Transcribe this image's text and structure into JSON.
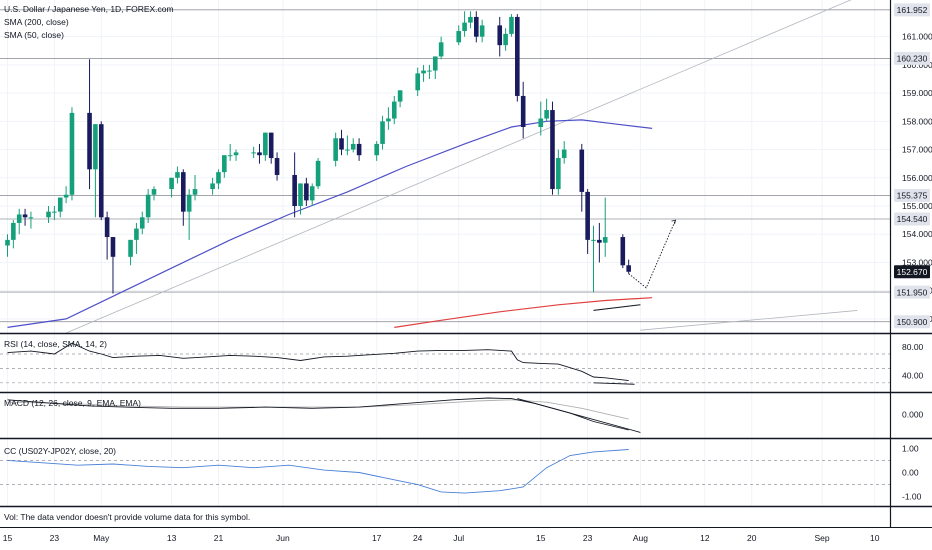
{
  "chart_data": {
    "type": "candlestick",
    "symbol_title": "U.S. Dollar / Japanese Yen, 1D, FOREX.com",
    "overlays": [
      {
        "name": "SMA (200, close)",
        "color": "#e04040"
      },
      {
        "name": "SMA (50, close)",
        "color": "#5050c8"
      }
    ],
    "colors": {
      "up": "#14a07a",
      "down": "#1a1a5e",
      "sma50": "#5050c8",
      "sma200": "#e04040",
      "rsi": "#131722",
      "macd": "#131722",
      "signal": "#b0b0b0",
      "cc": "#4a80d8"
    },
    "price_axis": {
      "range": [
        150.5,
        162.3
      ],
      "ticks": [
        "161.000",
        "160.000",
        "159.000",
        "158.000",
        "157.000",
        "156.000",
        "155.000",
        "154.000",
        "153.000",
        "152.000",
        "151.000"
      ],
      "labels": [
        {
          "text": "161.952",
          "value": 161.952
        },
        {
          "text": "160.230",
          "value": 160.23
        },
        {
          "text": "155.375",
          "value": 155.375
        },
        {
          "text": "154.540",
          "value": 154.54
        },
        {
          "text": "152.670",
          "value": 152.67
        },
        {
          "text": "151.950",
          "value": 151.95
        },
        {
          "text": "150.900",
          "value": 150.9
        }
      ],
      "horizontal_levels": [
        161.952,
        160.23,
        155.375,
        154.54,
        151.95,
        150.9
      ]
    },
    "x_axis": {
      "ticks": [
        {
          "label": "15",
          "day": 0
        },
        {
          "label": "23",
          "day": 8
        },
        {
          "label": "May",
          "day": 16
        },
        {
          "label": "13",
          "day": 28
        },
        {
          "label": "21",
          "day": 36
        },
        {
          "label": "Jun",
          "day": 47
        },
        {
          "label": "17",
          "day": 63
        },
        {
          "label": "24",
          "day": 70
        },
        {
          "label": "Jul",
          "day": 77
        },
        {
          "label": "15",
          "day": 91
        },
        {
          "label": "23",
          "day": 99
        },
        {
          "label": "Aug",
          "day": 108
        },
        {
          "label": "12",
          "day": 119
        },
        {
          "label": "20",
          "day": 127
        },
        {
          "label": "Sep",
          "day": 139
        },
        {
          "label": "10",
          "day": 148
        }
      ]
    },
    "candles": [
      {
        "d": 0,
        "o": 153.6,
        "h": 154.0,
        "l": 153.2,
        "c": 153.8
      },
      {
        "d": 1,
        "o": 153.8,
        "h": 154.5,
        "l": 153.5,
        "c": 154.4
      },
      {
        "d": 2,
        "o": 154.4,
        "h": 154.9,
        "l": 154.0,
        "c": 154.7
      },
      {
        "d": 3,
        "o": 154.7,
        "h": 154.9,
        "l": 154.3,
        "c": 154.6
      },
      {
        "d": 4,
        "o": 154.6,
        "h": 154.8,
        "l": 154.2,
        "c": 154.6
      },
      {
        "d": 7,
        "o": 154.6,
        "h": 155.0,
        "l": 154.4,
        "c": 154.8
      },
      {
        "d": 8,
        "o": 154.8,
        "h": 155.0,
        "l": 154.5,
        "c": 154.8
      },
      {
        "d": 9,
        "o": 154.8,
        "h": 155.3,
        "l": 154.6,
        "c": 155.3
      },
      {
        "d": 10,
        "o": 155.3,
        "h": 155.7,
        "l": 155.1,
        "c": 155.4
      },
      {
        "d": 11,
        "o": 155.4,
        "h": 158.5,
        "l": 155.2,
        "c": 158.3
      },
      {
        "d": 14,
        "o": 158.3,
        "h": 160.2,
        "l": 155.6,
        "c": 156.3
      },
      {
        "d": 15,
        "o": 156.3,
        "h": 157.9,
        "l": 154.6,
        "c": 157.9
      },
      {
        "d": 16,
        "o": 157.9,
        "h": 158.0,
        "l": 154.5,
        "c": 154.6
      },
      {
        "d": 17,
        "o": 154.6,
        "h": 154.8,
        "l": 153.1,
        "c": 153.9
      },
      {
        "d": 18,
        "o": 153.9,
        "h": 153.9,
        "l": 151.9,
        "c": 153.2
      },
      {
        "d": 21,
        "o": 153.2,
        "h": 153.8,
        "l": 152.9,
        "c": 153.8
      },
      {
        "d": 22,
        "o": 153.8,
        "h": 154.4,
        "l": 153.3,
        "c": 154.2
      },
      {
        "d": 23,
        "o": 154.2,
        "h": 154.8,
        "l": 154.0,
        "c": 154.6
      },
      {
        "d": 24,
        "o": 154.6,
        "h": 155.6,
        "l": 154.4,
        "c": 155.4
      },
      {
        "d": 25,
        "o": 155.4,
        "h": 155.7,
        "l": 155.2,
        "c": 155.6
      },
      {
        "d": 28,
        "o": 155.6,
        "h": 156.0,
        "l": 155.3,
        "c": 156.0
      },
      {
        "d": 29,
        "o": 156.0,
        "h": 156.4,
        "l": 155.8,
        "c": 156.2
      },
      {
        "d": 30,
        "o": 156.2,
        "h": 156.3,
        "l": 154.3,
        "c": 154.8
      },
      {
        "d": 31,
        "o": 154.8,
        "h": 155.6,
        "l": 153.8,
        "c": 155.4
      },
      {
        "d": 32,
        "o": 155.4,
        "h": 156.1,
        "l": 155.2,
        "c": 155.6
      },
      {
        "d": 35,
        "o": 155.6,
        "h": 156.0,
        "l": 155.4,
        "c": 155.8
      },
      {
        "d": 36,
        "o": 155.8,
        "h": 156.3,
        "l": 155.6,
        "c": 156.2
      },
      {
        "d": 37,
        "o": 156.2,
        "h": 156.8,
        "l": 156.0,
        "c": 156.8
      },
      {
        "d": 38,
        "o": 156.8,
        "h": 157.2,
        "l": 156.6,
        "c": 156.8
      },
      {
        "d": 39,
        "o": 156.8,
        "h": 157.0,
        "l": 156.6,
        "c": 156.9
      },
      {
        "d": 42,
        "o": 156.9,
        "h": 157.1,
        "l": 156.7,
        "c": 156.9
      },
      {
        "d": 43,
        "o": 156.9,
        "h": 157.2,
        "l": 156.5,
        "c": 156.8
      },
      {
        "d": 44,
        "o": 156.8,
        "h": 157.6,
        "l": 156.6,
        "c": 157.6
      },
      {
        "d": 45,
        "o": 157.6,
        "h": 157.6,
        "l": 156.5,
        "c": 156.7
      },
      {
        "d": 46,
        "o": 156.7,
        "h": 156.9,
        "l": 155.9,
        "c": 156.1
      },
      {
        "d": 49,
        "o": 156.1,
        "h": 156.9,
        "l": 154.6,
        "c": 155.0
      },
      {
        "d": 50,
        "o": 155.0,
        "h": 155.8,
        "l": 154.7,
        "c": 155.8
      },
      {
        "d": 51,
        "o": 155.8,
        "h": 156.0,
        "l": 155.0,
        "c": 155.2
      },
      {
        "d": 52,
        "o": 155.2,
        "h": 155.8,
        "l": 155.0,
        "c": 155.7
      },
      {
        "d": 53,
        "o": 155.7,
        "h": 156.7,
        "l": 155.6,
        "c": 156.6
      },
      {
        "d": 56,
        "o": 156.6,
        "h": 157.6,
        "l": 156.4,
        "c": 157.4
      },
      {
        "d": 57,
        "o": 157.4,
        "h": 157.7,
        "l": 156.8,
        "c": 157.0
      },
      {
        "d": 58,
        "o": 157.0,
        "h": 157.5,
        "l": 156.8,
        "c": 157.0
      },
      {
        "d": 59,
        "o": 157.0,
        "h": 157.4,
        "l": 156.9,
        "c": 157.2
      },
      {
        "d": 60,
        "o": 157.2,
        "h": 157.4,
        "l": 156.6,
        "c": 156.8
      },
      {
        "d": 63,
        "o": 156.8,
        "h": 157.3,
        "l": 156.6,
        "c": 157.2
      },
      {
        "d": 64,
        "o": 157.2,
        "h": 158.2,
        "l": 157.0,
        "c": 158.0
      },
      {
        "d": 65,
        "o": 158.0,
        "h": 158.5,
        "l": 157.7,
        "c": 158.1
      },
      {
        "d": 66,
        "o": 158.1,
        "h": 158.9,
        "l": 157.9,
        "c": 158.7
      },
      {
        "d": 67,
        "o": 158.7,
        "h": 159.1,
        "l": 158.5,
        "c": 159.1
      },
      {
        "d": 70,
        "o": 159.1,
        "h": 159.9,
        "l": 158.9,
        "c": 159.7
      },
      {
        "d": 71,
        "o": 159.7,
        "h": 160.0,
        "l": 159.4,
        "c": 159.8
      },
      {
        "d": 72,
        "o": 159.8,
        "h": 160.0,
        "l": 159.5,
        "c": 159.8
      },
      {
        "d": 73,
        "o": 159.8,
        "h": 160.3,
        "l": 159.5,
        "c": 160.3
      },
      {
        "d": 74,
        "o": 160.3,
        "h": 161.0,
        "l": 160.2,
        "c": 160.8
      },
      {
        "d": 77,
        "o": 160.8,
        "h": 161.4,
        "l": 160.7,
        "c": 161.2
      },
      {
        "d": 78,
        "o": 161.2,
        "h": 161.9,
        "l": 161.0,
        "c": 161.5
      },
      {
        "d": 79,
        "o": 161.5,
        "h": 161.9,
        "l": 161.3,
        "c": 161.7
      },
      {
        "d": 80,
        "o": 161.7,
        "h": 161.9,
        "l": 160.8,
        "c": 161.0
      },
      {
        "d": 81,
        "o": 161.0,
        "h": 161.6,
        "l": 160.8,
        "c": 161.4
      },
      {
        "d": 84,
        "o": 161.4,
        "h": 161.7,
        "l": 160.3,
        "c": 160.7
      },
      {
        "d": 85,
        "o": 160.7,
        "h": 161.3,
        "l": 160.5,
        "c": 161.1
      },
      {
        "d": 86,
        "o": 161.1,
        "h": 161.8,
        "l": 161.0,
        "c": 161.7
      },
      {
        "d": 87,
        "o": 161.7,
        "h": 161.8,
        "l": 158.7,
        "c": 158.9
      },
      {
        "d": 88,
        "o": 158.9,
        "h": 159.4,
        "l": 157.4,
        "c": 157.8
      },
      {
        "d": 91,
        "o": 157.8,
        "h": 158.7,
        "l": 157.5,
        "c": 158.1
      },
      {
        "d": 92,
        "o": 158.1,
        "h": 158.8,
        "l": 158.0,
        "c": 158.4
      },
      {
        "d": 93,
        "o": 158.4,
        "h": 158.7,
        "l": 155.4,
        "c": 155.6
      },
      {
        "d": 94,
        "o": 155.6,
        "h": 157.0,
        "l": 155.4,
        "c": 156.7
      },
      {
        "d": 95,
        "o": 156.7,
        "h": 157.3,
        "l": 156.5,
        "c": 157.0
      },
      {
        "d": 98,
        "o": 157.0,
        "h": 157.2,
        "l": 154.8,
        "c": 155.5
      },
      {
        "d": 99,
        "o": 155.5,
        "h": 155.6,
        "l": 153.3,
        "c": 153.8
      },
      {
        "d": 100,
        "o": 153.8,
        "h": 154.3,
        "l": 151.95,
        "c": 153.8
      },
      {
        "d": 101,
        "o": 153.8,
        "h": 154.4,
        "l": 153.0,
        "c": 153.7
      },
      {
        "d": 102,
        "o": 153.7,
        "h": 155.3,
        "l": 153.2,
        "c": 153.9
      },
      {
        "d": 105,
        "o": 153.9,
        "h": 154.0,
        "l": 152.8,
        "c": 152.9
      },
      {
        "d": 106,
        "o": 152.9,
        "h": 153.1,
        "l": 152.6,
        "c": 152.67
      }
    ],
    "sma50": [
      [
        0,
        150.7
      ],
      [
        10,
        151.0
      ],
      [
        18,
        151.8
      ],
      [
        28,
        152.8
      ],
      [
        38,
        153.8
      ],
      [
        48,
        154.7
      ],
      [
        58,
        155.5
      ],
      [
        68,
        156.4
      ],
      [
        78,
        157.2
      ],
      [
        86,
        157.8
      ],
      [
        92,
        158.0
      ],
      [
        98,
        158.05
      ],
      [
        104,
        157.9
      ],
      [
        110,
        157.75
      ]
    ],
    "sma200": [
      [
        66,
        150.7
      ],
      [
        74,
        150.95
      ],
      [
        84,
        151.25
      ],
      [
        94,
        151.5
      ],
      [
        102,
        151.65
      ],
      [
        110,
        151.75
      ]
    ],
    "projection": [
      [
        106,
        152.6
      ],
      [
        109,
        152.1
      ],
      [
        114,
        154.5
      ]
    ],
    "trendlines": [
      {
        "from": [
          10,
          150.5
        ],
        "to": [
          145,
          162.4
        ]
      },
      {
        "from": [
          108,
          150.6
        ],
        "to": [
          145,
          151.3
        ]
      },
      {
        "from": [
          100,
          151.3
        ],
        "to": [
          108,
          151.5
        ]
      }
    ],
    "indicators": [
      {
        "name": "RSI",
        "title": "RSI (14, close, SMA, 14, 2)",
        "range": [
          20,
          95
        ],
        "ticks": [
          {
            "text": "80.00",
            "value": 80
          },
          {
            "text": "40.00",
            "value": 40
          }
        ],
        "bands": [
          30,
          50,
          70
        ],
        "values": [
          [
            0,
            72
          ],
          [
            4,
            74
          ],
          [
            8,
            70
          ],
          [
            11,
            85
          ],
          [
            14,
            74
          ],
          [
            16,
            70
          ],
          [
            18,
            65
          ],
          [
            22,
            67
          ],
          [
            26,
            68
          ],
          [
            30,
            64
          ],
          [
            34,
            66
          ],
          [
            38,
            68
          ],
          [
            42,
            67
          ],
          [
            46,
            65
          ],
          [
            50,
            61
          ],
          [
            54,
            66
          ],
          [
            58,
            67
          ],
          [
            62,
            69
          ],
          [
            66,
            71
          ],
          [
            70,
            74
          ],
          [
            74,
            75
          ],
          [
            78,
            75
          ],
          [
            82,
            76
          ],
          [
            86,
            74
          ],
          [
            87,
            62
          ],
          [
            88,
            58
          ],
          [
            91,
            57
          ],
          [
            94,
            56
          ],
          [
            98,
            46
          ],
          [
            100,
            38
          ],
          [
            102,
            37
          ],
          [
            106,
            33
          ]
        ],
        "trendline": {
          "from": [
            100,
            30
          ],
          "to": [
            107,
            28
          ]
        }
      },
      {
        "name": "MACD",
        "title": "MACD (12, 26, close, 9, EMA, EMA)",
        "range": [
          -1.8,
          1.6
        ],
        "ticks": [
          {
            "text": "0.000",
            "value": 0
          }
        ],
        "macd": [
          [
            0,
            1.2
          ],
          [
            8,
            0.9
          ],
          [
            14,
            0.7
          ],
          [
            20,
            0.6
          ],
          [
            28,
            0.5
          ],
          [
            36,
            0.5
          ],
          [
            44,
            0.6
          ],
          [
            52,
            0.5
          ],
          [
            60,
            0.6
          ],
          [
            68,
            0.9
          ],
          [
            76,
            1.2
          ],
          [
            82,
            1.35
          ],
          [
            86,
            1.3
          ],
          [
            90,
            0.9
          ],
          [
            96,
            0.1
          ],
          [
            100,
            -0.6
          ],
          [
            106,
            -1.3
          ]
        ],
        "signal": [
          [
            0,
            1.0
          ],
          [
            10,
            0.9
          ],
          [
            20,
            0.7
          ],
          [
            30,
            0.6
          ],
          [
            40,
            0.6
          ],
          [
            50,
            0.6
          ],
          [
            60,
            0.6
          ],
          [
            70,
            0.8
          ],
          [
            80,
            1.1
          ],
          [
            86,
            1.2
          ],
          [
            92,
            1.0
          ],
          [
            98,
            0.5
          ],
          [
            106,
            -0.4
          ]
        ],
        "trendline": {
          "from": [
            87,
            1.3
          ],
          "to": [
            108,
            -1.5
          ]
        }
      },
      {
        "name": "CC",
        "title": "CC (US02Y-JP02Y, close, 20)",
        "range": [
          -1.3,
          1.3
        ],
        "ticks": [
          {
            "text": "1.00",
            "value": 1
          },
          {
            "text": "0.00",
            "value": 0
          },
          {
            "text": "-1.00",
            "value": -1
          }
        ],
        "bands": [
          -0.5,
          0.5
        ],
        "values": [
          [
            0,
            0.5
          ],
          [
            6,
            0.4
          ],
          [
            12,
            0.3
          ],
          [
            18,
            0.35
          ],
          [
            24,
            0.25
          ],
          [
            30,
            0.2
          ],
          [
            36,
            0.3
          ],
          [
            42,
            0.2
          ],
          [
            48,
            0.3
          ],
          [
            54,
            0.1
          ],
          [
            60,
            0.0
          ],
          [
            66,
            -0.3
          ],
          [
            70,
            -0.5
          ],
          [
            74,
            -0.8
          ],
          [
            78,
            -0.85
          ],
          [
            84,
            -0.75
          ],
          [
            88,
            -0.6
          ],
          [
            92,
            0.2
          ],
          [
            96,
            0.7
          ],
          [
            100,
            0.85
          ],
          [
            106,
            0.95
          ]
        ]
      }
    ],
    "footer_note": "Vol: The data vendor doesn't provide volume data for this symbol."
  }
}
